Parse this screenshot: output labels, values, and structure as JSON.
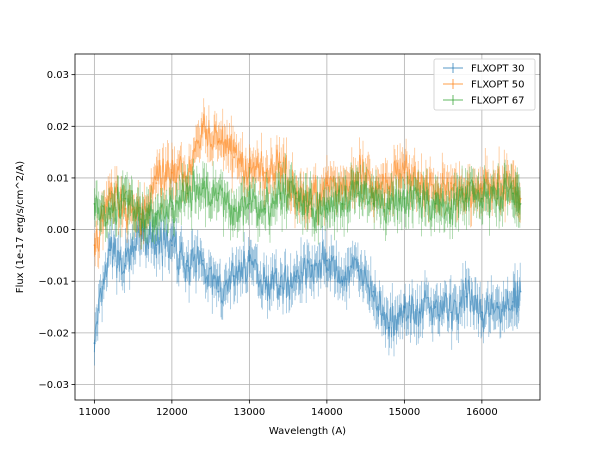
{
  "chart_data": {
    "type": "line",
    "xlabel": "Wavelength (A)",
    "ylabel": "Flux (1e-17 erg/s/cm^2/A)",
    "xlim": [
      10750,
      16750
    ],
    "ylim": [
      -0.033,
      0.034
    ],
    "xticks": [
      11000,
      12000,
      13000,
      14000,
      15000,
      16000
    ],
    "yticks": [
      -0.03,
      -0.02,
      -0.01,
      0.0,
      0.01,
      0.02,
      0.03
    ],
    "xtick_labels": [
      "11000",
      "12000",
      "13000",
      "14000",
      "15000",
      "16000"
    ],
    "ytick_labels": [
      "−0.03",
      "−0.02",
      "−0.01",
      "0.00",
      "0.01",
      "0.02",
      "0.03"
    ],
    "grid": true,
    "legend_position": "top-right",
    "series": [
      {
        "name": "FLXOPT 30",
        "color": "#1f77b4",
        "x": [
          11000,
          11200,
          11400,
          11600,
          11800,
          12000,
          12200,
          12400,
          12600,
          12800,
          13000,
          13200,
          13400,
          13600,
          13800,
          14000,
          14200,
          14400,
          14600,
          14800,
          15000,
          15200,
          15400,
          15600,
          15800,
          16000,
          16200,
          16400,
          16500
        ],
        "y": [
          -0.022,
          -0.004,
          -0.007,
          -0.001,
          -0.003,
          -0.003,
          -0.007,
          -0.006,
          -0.012,
          -0.009,
          -0.006,
          -0.01,
          -0.011,
          -0.009,
          -0.007,
          -0.006,
          -0.01,
          -0.008,
          -0.012,
          -0.019,
          -0.015,
          -0.016,
          -0.015,
          -0.016,
          -0.013,
          -0.016,
          -0.015,
          -0.014,
          -0.012
        ]
      },
      {
        "name": "FLXOPT 50",
        "color": "#ff7f0e",
        "x": [
          11000,
          11200,
          11400,
          11600,
          11800,
          12000,
          12200,
          12400,
          12600,
          12800,
          13000,
          13200,
          13400,
          13600,
          13800,
          14000,
          14200,
          14400,
          14600,
          14800,
          15000,
          15200,
          15400,
          15600,
          15800,
          16000,
          16200,
          16400,
          16500
        ],
        "y": [
          -0.003,
          0.007,
          0.004,
          0.003,
          0.009,
          0.011,
          0.01,
          0.02,
          0.017,
          0.014,
          0.012,
          0.011,
          0.013,
          0.006,
          0.006,
          0.009,
          0.007,
          0.011,
          0.008,
          0.008,
          0.011,
          0.009,
          0.007,
          0.009,
          0.007,
          0.008,
          0.009,
          0.008,
          0.006
        ]
      },
      {
        "name": "FLXOPT 67",
        "color": "#2ca02c",
        "x": [
          11000,
          11200,
          11400,
          11600,
          11800,
          12000,
          12200,
          12400,
          12600,
          12800,
          13000,
          13200,
          13400,
          13600,
          13800,
          14000,
          14200,
          14400,
          14600,
          14800,
          15000,
          15200,
          15400,
          15600,
          15800,
          16000,
          16200,
          16400,
          16500
        ],
        "y": [
          0.005,
          0.004,
          0.006,
          0.002,
          0.003,
          0.004,
          0.007,
          0.008,
          0.007,
          0.004,
          0.005,
          0.004,
          0.007,
          0.007,
          0.004,
          0.004,
          0.005,
          0.007,
          0.005,
          0.004,
          0.006,
          0.006,
          0.005,
          0.004,
          0.006,
          0.006,
          0.006,
          0.007,
          0.005
        ]
      }
    ]
  }
}
